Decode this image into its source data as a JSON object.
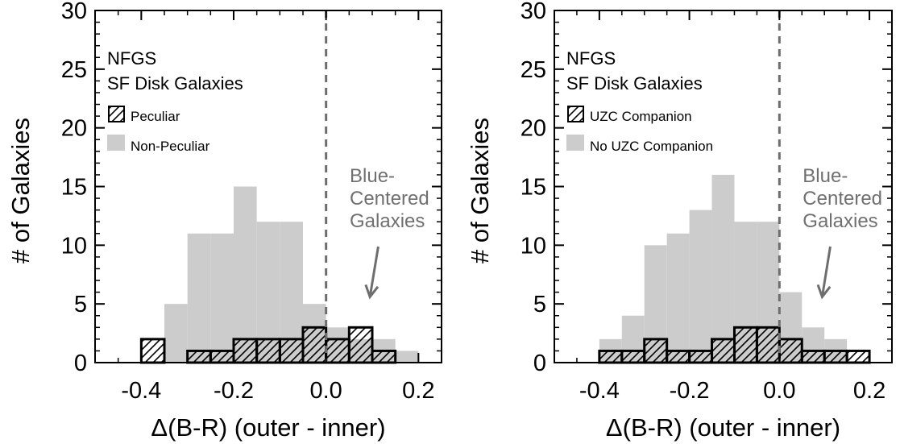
{
  "chart_data": [
    {
      "type": "bar",
      "ylabel": "# of Galaxies",
      "xlabel": "Δ(B-R)  (outer - inner)",
      "xlim": [
        -0.5,
        0.25
      ],
      "ylim": [
        0,
        30
      ],
      "bin_width": 0.05,
      "xticks": [
        "-0.4",
        "-0.2",
        "0.0",
        "0.2"
      ],
      "yticks": [
        "0",
        "5",
        "10",
        "15",
        "20",
        "25",
        "30"
      ],
      "legend_title_1": "NFGS",
      "legend_title_2": "SF Disk Galaxies",
      "series": [
        {
          "name": "Non-Peculiar",
          "bin_left": [
            -0.35,
            -0.3,
            -0.25,
            -0.2,
            -0.15,
            -0.1,
            -0.05,
            0.0,
            0.05,
            0.1,
            0.15
          ],
          "values": [
            5,
            11,
            11,
            15,
            12,
            12,
            5,
            3,
            2,
            2,
            1
          ],
          "style": "filled",
          "color": "#cccccc"
        },
        {
          "name": "Peculiar",
          "bin_left": [
            -0.4,
            -0.3,
            -0.25,
            -0.2,
            -0.15,
            -0.1,
            -0.05,
            0.0,
            0.05,
            0.1
          ],
          "values": [
            2,
            1,
            1,
            2,
            2,
            2,
            3,
            2,
            3,
            1
          ],
          "style": "hatched"
        }
      ],
      "annotation": [
        "Blue-",
        "Centered",
        "Galaxies"
      ],
      "reference_line_x": 0.0
    },
    {
      "type": "bar",
      "ylabel": "# of Galaxies",
      "xlabel": "Δ(B-R)  (outer - inner)",
      "xlim": [
        -0.5,
        0.25
      ],
      "ylim": [
        0,
        30
      ],
      "bin_width": 0.05,
      "xticks": [
        "-0.4",
        "-0.2",
        "0.0",
        "0.2"
      ],
      "yticks": [
        "0",
        "5",
        "10",
        "15",
        "20",
        "25",
        "30"
      ],
      "legend_title_1": "NFGS",
      "legend_title_2": "SF Disk Galaxies",
      "series": [
        {
          "name": "No UZC Companion",
          "bin_left": [
            -0.4,
            -0.35,
            -0.3,
            -0.25,
            -0.2,
            -0.15,
            -0.1,
            -0.05,
            0.0,
            0.05,
            0.1
          ],
          "values": [
            2,
            4,
            10,
            11,
            13,
            16,
            12,
            12,
            6,
            3,
            2
          ],
          "style": "filled",
          "color": "#cccccc"
        },
        {
          "name": "UZC Companion",
          "bin_left": [
            -0.4,
            -0.35,
            -0.3,
            -0.25,
            -0.2,
            -0.15,
            -0.1,
            -0.05,
            0.0,
            0.05,
            0.1,
            0.15
          ],
          "values": [
            1,
            1,
            2,
            1,
            1,
            2,
            3,
            3,
            2,
            1,
            1,
            1
          ],
          "style": "hatched"
        }
      ],
      "annotation": [
        "Blue-",
        "Centered",
        "Galaxies"
      ],
      "reference_line_x": 0.0
    }
  ]
}
